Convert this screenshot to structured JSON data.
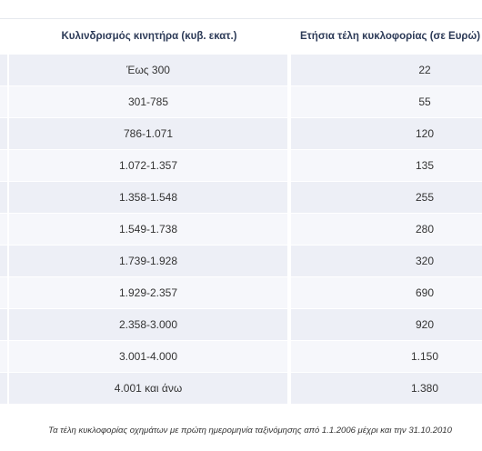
{
  "table": {
    "headers": {
      "engine_cc": "Κυλινδρισμός κινητήρα (κυβ. εκατ.)",
      "annual_fee": "Ετήσια τέλη κυκλοφορίας (σε Ευρώ)"
    },
    "rows": [
      {
        "engine_cc": "Έως 300",
        "annual_fee": "22"
      },
      {
        "engine_cc": "301-785",
        "annual_fee": "55"
      },
      {
        "engine_cc": "786-1.071",
        "annual_fee": "120"
      },
      {
        "engine_cc": "1.072-1.357",
        "annual_fee": "135"
      },
      {
        "engine_cc": "1.358-1.548",
        "annual_fee": "255"
      },
      {
        "engine_cc": "1.549-1.738",
        "annual_fee": "280"
      },
      {
        "engine_cc": "1.739-1.928",
        "annual_fee": "320"
      },
      {
        "engine_cc": "1.929-2.357",
        "annual_fee": "690"
      },
      {
        "engine_cc": "2.358-3.000",
        "annual_fee": "920"
      },
      {
        "engine_cc": "3.001-4.000",
        "annual_fee": "1.150"
      },
      {
        "engine_cc": "4.001 και άνω",
        "annual_fee": "1.380"
      }
    ]
  },
  "footnote": "Τα τέλη κυκλοφορίας οχημάτων με πρώτη ημερομηνία ταξινόμησης από 1.1.2006 μέχρι και την 31.10.2010",
  "colors": {
    "header_text": "#2c3a57",
    "row_odd": "#edeff6",
    "row_even": "#f6f7fb"
  }
}
